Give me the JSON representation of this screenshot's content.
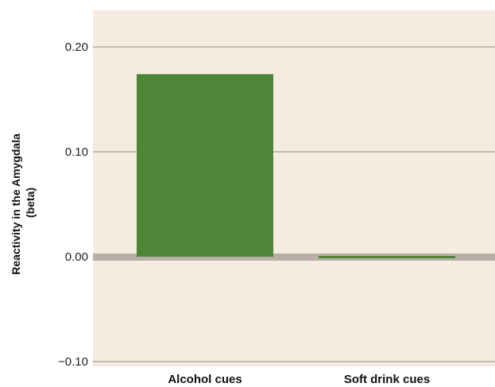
{
  "chart_data": {
    "type": "bar",
    "categories": [
      "Alcohol cues",
      "Soft drink cues"
    ],
    "values": [
      0.174,
      -0.002
    ],
    "ylabel_lines": [
      "Reactivity in the Amygdala",
      "(beta)"
    ],
    "ylim": [
      -0.1,
      0.22
    ],
    "yticks": [
      0.2,
      0.1,
      0.0,
      -0.1
    ],
    "ytick_labels": [
      "0.20",
      "0.10",
      "0.00",
      "−0.10"
    ],
    "grid": true,
    "colors": {
      "plot_background": "#f5ecdf",
      "bar": "#4e8537",
      "gridline": "#a8a098",
      "zero_line": "#b8b0a8"
    }
  }
}
